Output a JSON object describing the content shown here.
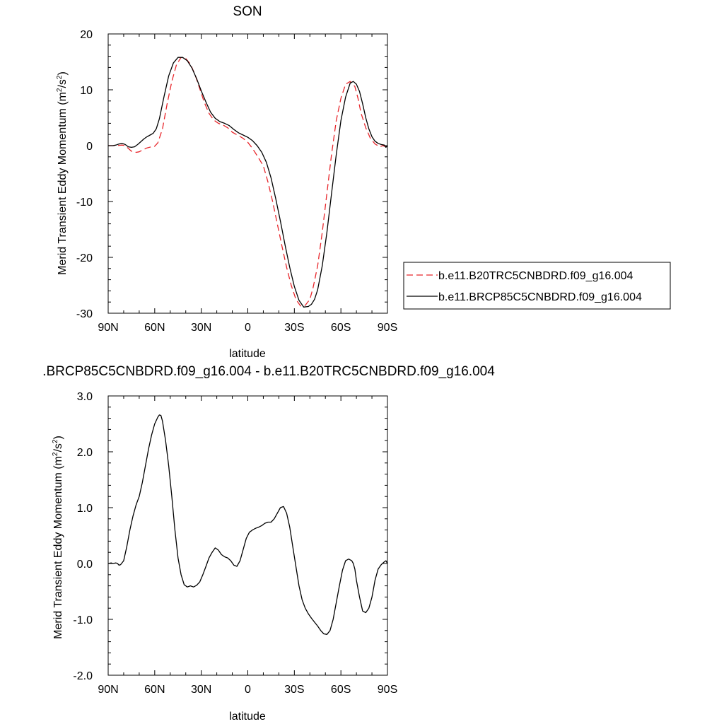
{
  "chart_data": [
    {
      "type": "line",
      "title": "SON",
      "xlabel": "latitude",
      "ylabel": "Merid Transient Eddy Momentum (m²/s²)",
      "ylabel_main": "Merid Transient Eddy Momentum (m",
      "ylabel_unit_mid": "/s",
      "ylabel_close": ")",
      "ylabel_sup": "2",
      "xlim": [
        90,
        -90
      ],
      "ylim": [
        -30,
        20
      ],
      "x_ticks": [
        90,
        60,
        30,
        0,
        -30,
        -60,
        -90
      ],
      "x_tick_labels": [
        "90N",
        "60N",
        "30N",
        "0",
        "30S",
        "60S",
        "90S"
      ],
      "y_ticks": [
        20,
        10,
        0,
        -10,
        -20,
        -30
      ],
      "y_tick_labels": [
        "20",
        "10",
        "0",
        "-10",
        "-20",
        "-30"
      ],
      "legend_placement": "right",
      "series": [
        {
          "name": "b.e11.B20TRC5CNBDRD.f09_g16.004",
          "color": "#e8262b",
          "dash": "dashed",
          "x": [
            90,
            85,
            81,
            79,
            77,
            75,
            72,
            70,
            68,
            65,
            62,
            60,
            58,
            55,
            52,
            49,
            46,
            43,
            40,
            37,
            34,
            31,
            28,
            25,
            22,
            19,
            16,
            13,
            10,
            6,
            3,
            0,
            -3,
            -6,
            -10,
            -13,
            -16,
            -19,
            -22,
            -25,
            -28,
            -31,
            -34,
            -37,
            -40,
            -42,
            -45,
            -48,
            -51,
            -54,
            -57,
            -60,
            -63,
            -66,
            -69,
            -71,
            -73,
            -76,
            -79,
            -82,
            -85,
            -87,
            -89,
            -90
          ],
          "y": [
            0,
            0,
            0.1,
            0,
            -0.5,
            -1,
            -1.2,
            -1.1,
            -0.8,
            -0.4,
            -0.2,
            -0.1,
            0.5,
            3,
            7.5,
            11.5,
            14.5,
            15.8,
            15.6,
            14.6,
            12.7,
            10.2,
            7.7,
            5.8,
            4.6,
            4,
            3.7,
            3.2,
            2.4,
            1.8,
            1.3,
            0.6,
            -0.5,
            -1.8,
            -3.6,
            -6.5,
            -10,
            -14,
            -18,
            -21.8,
            -25,
            -27.5,
            -28.7,
            -28.6,
            -27.5,
            -25.5,
            -21.5,
            -15.5,
            -8.5,
            -1.5,
            4.5,
            8.5,
            11,
            11.5,
            10.6,
            8.5,
            5.8,
            3.2,
            1.3,
            0.3,
            -0.2,
            0,
            -0.2,
            0
          ]
        },
        {
          "name": "b.e11.BRCP85C5CNBDRD.f09_g16.004",
          "color": "#000000",
          "dash": "solid",
          "x": [
            90,
            87,
            85,
            83,
            81,
            79,
            77,
            75,
            73,
            71,
            69,
            67,
            65,
            63,
            61,
            59,
            57,
            54,
            51,
            48,
            45,
            42,
            39,
            36,
            33,
            30,
            27,
            24,
            21,
            18,
            15,
            12,
            9,
            6,
            3,
            0,
            -3,
            -6,
            -9,
            -12,
            -15,
            -18,
            -21,
            -24,
            -27,
            -30,
            -33,
            -36,
            -39,
            -41,
            -43,
            -45,
            -48,
            -51,
            -54,
            -57,
            -60,
            -63,
            -66,
            -68,
            -70,
            -72,
            -74,
            -76,
            -78,
            -80,
            -82,
            -84,
            -86,
            -88,
            -89,
            -90
          ],
          "y": [
            0,
            0,
            0.1,
            0.3,
            0.4,
            0.2,
            -0.2,
            -0.3,
            -0.2,
            0.2,
            0.7,
            1.2,
            1.6,
            1.9,
            2.2,
            3,
            4.8,
            8.8,
            12.5,
            14.8,
            15.8,
            15.8,
            15.2,
            13.9,
            12,
            9.8,
            7.8,
            6,
            4.9,
            4.3,
            4,
            3.6,
            2.9,
            2.3,
            1.9,
            1.5,
            0.9,
            0,
            -1.2,
            -3,
            -5.8,
            -9.5,
            -13.5,
            -17.8,
            -21.8,
            -25.2,
            -27.7,
            -28.9,
            -28.8,
            -28.4,
            -27.5,
            -25.8,
            -21.5,
            -15.5,
            -8.5,
            -1.6,
            4.5,
            8.7,
            11.2,
            11.5,
            11,
            9.7,
            7.5,
            5,
            3,
            1.6,
            0.8,
            0.4,
            0.2,
            0.1,
            -0.3,
            0
          ]
        }
      ]
    },
    {
      "type": "line",
      "title": ".BRCP85C5CNBDRD.f09_g16.004 - b.e11.B20TRC5CNBDRD.f09_g16.004",
      "xlabel": "latitude",
      "ylabel": "Merid Transient Eddy Momentum (m²/s²)",
      "ylabel_main": "Merid Transient Eddy Momentum (m",
      "ylabel_unit_mid": "/s",
      "ylabel_close": ")",
      "ylabel_sup": "2",
      "xlim": [
        90,
        -90
      ],
      "ylim": [
        -2.0,
        3.0
      ],
      "x_ticks": [
        90,
        60,
        30,
        0,
        -30,
        -60,
        -90
      ],
      "x_tick_labels": [
        "90N",
        "60N",
        "30N",
        "0",
        "30S",
        "60S",
        "90S"
      ],
      "y_ticks": [
        3.0,
        2.0,
        1.0,
        0.0,
        -1.0,
        -2.0
      ],
      "y_tick_labels": [
        "3.0",
        "2.0",
        "1.0",
        "0.0",
        "-1.0",
        "-2.0"
      ],
      "series": [
        {
          "color": "#000000",
          "dash": "solid",
          "x": [
            90,
            88,
            87,
            85,
            84,
            83,
            82,
            80,
            78,
            76,
            74,
            72,
            70,
            68,
            66,
            64,
            62,
            60,
            58,
            57,
            56,
            55,
            53,
            51,
            49,
            47,
            45,
            43,
            41,
            39,
            37,
            35,
            33,
            31,
            29,
            27,
            25,
            23,
            21,
            19,
            17,
            15,
            13,
            11,
            9,
            7,
            5,
            3,
            1,
            -1,
            -3,
            -5,
            -7,
            -9,
            -11,
            -13,
            -15,
            -17,
            -19,
            -21,
            -23,
            -25,
            -27,
            -29,
            -31,
            -33,
            -35,
            -37,
            -39,
            -41,
            -43,
            -45,
            -47,
            -49,
            -51,
            -53,
            -55,
            -57,
            -59,
            -61,
            -63,
            -65,
            -67,
            -68,
            -69,
            -70,
            -72,
            -74,
            -76,
            -78,
            -79,
            -80,
            -81,
            -82,
            -84,
            -86,
            -88,
            -89,
            -90
          ],
          "y": [
            0.0,
            0.01,
            0.0,
            0.01,
            0.0,
            -0.03,
            -0.02,
            0.05,
            0.3,
            0.6,
            0.85,
            1.05,
            1.2,
            1.45,
            1.75,
            2.05,
            2.3,
            2.5,
            2.62,
            2.66,
            2.65,
            2.55,
            2.2,
            1.75,
            1.2,
            0.6,
            0.1,
            -0.2,
            -0.38,
            -0.42,
            -0.4,
            -0.42,
            -0.39,
            -0.33,
            -0.2,
            -0.05,
            0.1,
            0.2,
            0.28,
            0.24,
            0.16,
            0.12,
            0.1,
            0.05,
            -0.03,
            -0.05,
            0.05,
            0.25,
            0.45,
            0.56,
            0.6,
            0.63,
            0.65,
            0.68,
            0.72,
            0.74,
            0.74,
            0.8,
            0.9,
            1.0,
            1.02,
            0.9,
            0.65,
            0.3,
            -0.05,
            -0.4,
            -0.65,
            -0.8,
            -0.9,
            -0.98,
            -1.05,
            -1.12,
            -1.2,
            -1.26,
            -1.27,
            -1.2,
            -1.0,
            -0.7,
            -0.4,
            -0.12,
            0.05,
            0.08,
            0.05,
            0.0,
            -0.1,
            -0.3,
            -0.6,
            -0.85,
            -0.88,
            -0.8,
            -0.7,
            -0.6,
            -0.45,
            -0.3,
            -0.1,
            -0.02,
            0.03,
            0.05,
            0.0
          ]
        }
      ]
    }
  ]
}
